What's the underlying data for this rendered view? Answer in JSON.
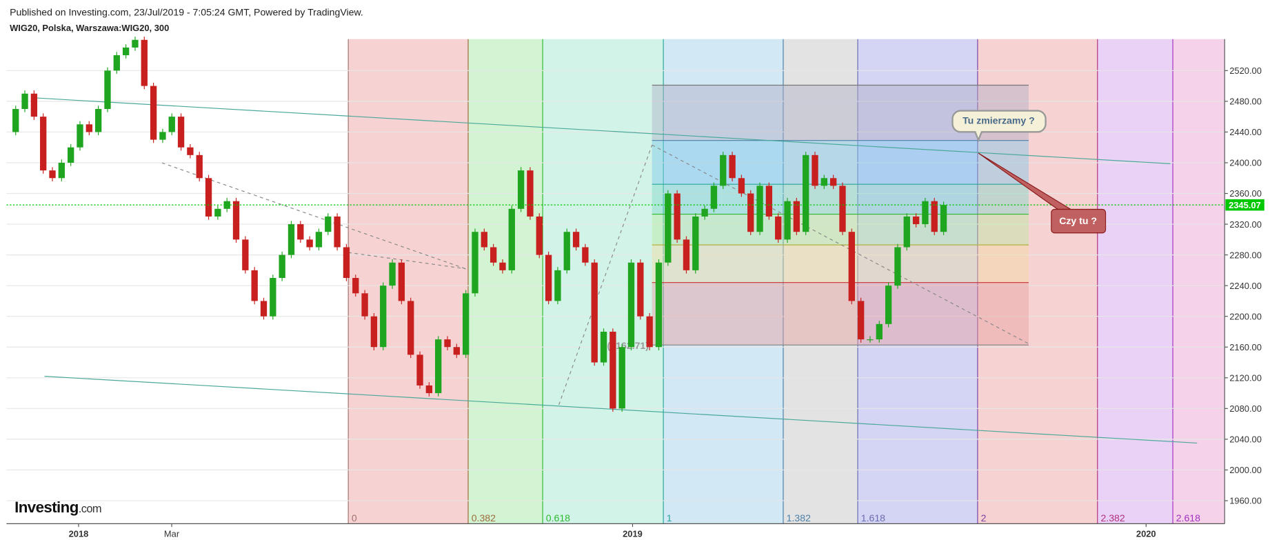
{
  "chart_data": {
    "type": "candlestick",
    "subtitle": "Published on Investing.com, 23/Jul/2019 - 7:05:24 GMT, Powered by TradingView.",
    "title": "WIG20, Polska, Warszawa:WIG20, 300",
    "values": [
      2440,
      2470,
      2490,
      2460,
      2390,
      2380,
      2400,
      2420,
      2450,
      2440,
      2470,
      2520,
      2540,
      2550,
      2560,
      2500,
      2430,
      2440,
      2460,
      2420,
      2410,
      2380,
      2330,
      2340,
      2350,
      2300,
      2260,
      2220,
      2200,
      2250,
      2280,
      2320,
      2300,
      2290,
      2310,
      2330,
      2290,
      2250,
      2230,
      2200,
      2160,
      2240,
      2270,
      2220,
      2150,
      2110,
      2100,
      2170,
      2160,
      2150,
      2230,
      2310,
      2290,
      2270,
      2260,
      2340,
      2390,
      2330,
      2280,
      2220,
      2260,
      2310,
      2290,
      2270,
      2140,
      2180,
      2080,
      2160,
      2270,
      2200,
      2160,
      2270,
      2360,
      2300,
      2260,
      2330,
      2340,
      2370,
      2410,
      2380,
      2360,
      2310,
      2370,
      2330,
      2300,
      2350,
      2310,
      2410,
      2370,
      2380,
      2370,
      2310,
      2220,
      2170,
      2170,
      2190,
      2240,
      2290,
      2330,
      2320,
      2350,
      2310,
      2345.07
    ],
    "up_color": "#1fa51f",
    "down_color": "#c8201e",
    "ylim": [
      1930,
      2561
    ],
    "yticks": [
      {
        "value": 1960,
        "label": "1960.00"
      },
      {
        "value": 2000,
        "label": "2000.00"
      },
      {
        "value": 2040,
        "label": "2040.00"
      },
      {
        "value": 2080,
        "label": "2080.00"
      },
      {
        "value": 2120,
        "label": "2120.00"
      },
      {
        "value": 2160,
        "label": "2160.00"
      },
      {
        "value": 2200,
        "label": "2200.00"
      },
      {
        "value": 2240,
        "label": "2240.00"
      },
      {
        "value": 2280,
        "label": "2280.00"
      },
      {
        "value": 2320,
        "label": "2320.00"
      },
      {
        "value": 2360,
        "label": "2360.00"
      },
      {
        "value": 2400,
        "label": "2400.00"
      },
      {
        "value": 2440,
        "label": "2440.00"
      },
      {
        "value": 2480,
        "label": "2480.00"
      },
      {
        "value": 2520,
        "label": "2520.00"
      }
    ],
    "grid": true,
    "x_labels": [
      "2018",
      "Mar",
      "2019",
      "2020"
    ],
    "last_price": 2345.07,
    "last_price_color": "#00c800",
    "fib_levels": [
      2501,
      2429,
      2372,
      2333,
      2293,
      2244,
      2162.71
    ],
    "fib_label": "0(2162.71)",
    "time_zones": [
      {
        "label": "0",
        "color": "#a07070"
      },
      {
        "label": "0.382",
        "color": "#9c6a3c"
      },
      {
        "label": "0.618",
        "color": "#2eb82e"
      },
      {
        "label": "1",
        "color": "#26a69a"
      },
      {
        "label": "1.382",
        "color": "#4a7fa8"
      },
      {
        "label": "1.618",
        "color": "#6b6bb0"
      },
      {
        "label": "2",
        "color": "#7b3fa0"
      },
      {
        "label": "2.382",
        "color": "#b0307a"
      },
      {
        "label": "2.618",
        "color": "#a030c0"
      }
    ],
    "annotations": [
      "Tu zmierzamy ?",
      "Czy tu ?"
    ],
    "logo": {
      "name": "Investing",
      "suffix": ".com"
    }
  }
}
